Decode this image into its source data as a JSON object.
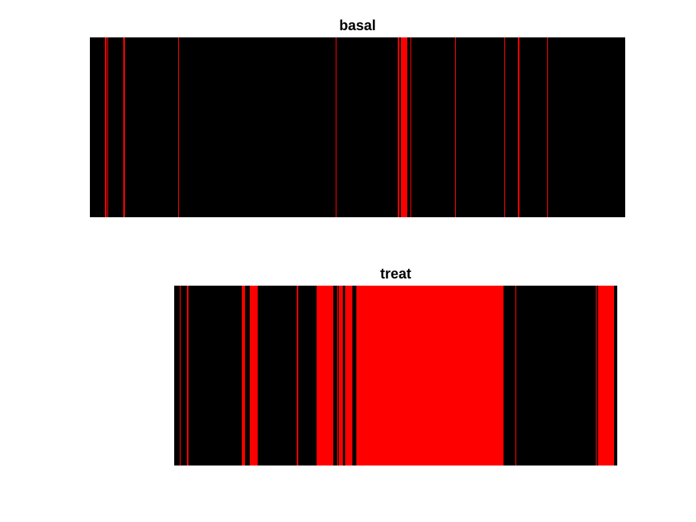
{
  "colors": {
    "background": "#000000",
    "event": "#ff0000"
  },
  "chart_data": [
    {
      "type": "heatmap",
      "title": "basal",
      "xlim": [
        0,
        673
      ],
      "events": [
        {
          "start": 19,
          "end": 21
        },
        {
          "start": 22,
          "end": 23
        },
        {
          "start": 42,
          "end": 44
        },
        {
          "start": 111,
          "end": 112
        },
        {
          "start": 309,
          "end": 310
        },
        {
          "start": 387,
          "end": 389
        },
        {
          "start": 391,
          "end": 399
        },
        {
          "start": 403,
          "end": 404
        },
        {
          "start": 459,
          "end": 460
        },
        {
          "start": 521,
          "end": 522
        },
        {
          "start": 538,
          "end": 540
        },
        {
          "start": 575,
          "end": 576
        }
      ]
    },
    {
      "type": "heatmap",
      "title": "treat",
      "xlim": [
        0,
        557
      ],
      "events": [
        {
          "start": 7,
          "end": 8
        },
        {
          "start": 16,
          "end": 18
        },
        {
          "start": 85,
          "end": 89
        },
        {
          "start": 95,
          "end": 105
        },
        {
          "start": 154,
          "end": 156
        },
        {
          "start": 179,
          "end": 200
        },
        {
          "start": 205,
          "end": 206
        },
        {
          "start": 207,
          "end": 212
        },
        {
          "start": 215,
          "end": 224
        },
        {
          "start": 229,
          "end": 414
        },
        {
          "start": 429,
          "end": 430
        },
        {
          "start": 530,
          "end": 531
        },
        {
          "start": 533,
          "end": 553
        }
      ]
    }
  ]
}
